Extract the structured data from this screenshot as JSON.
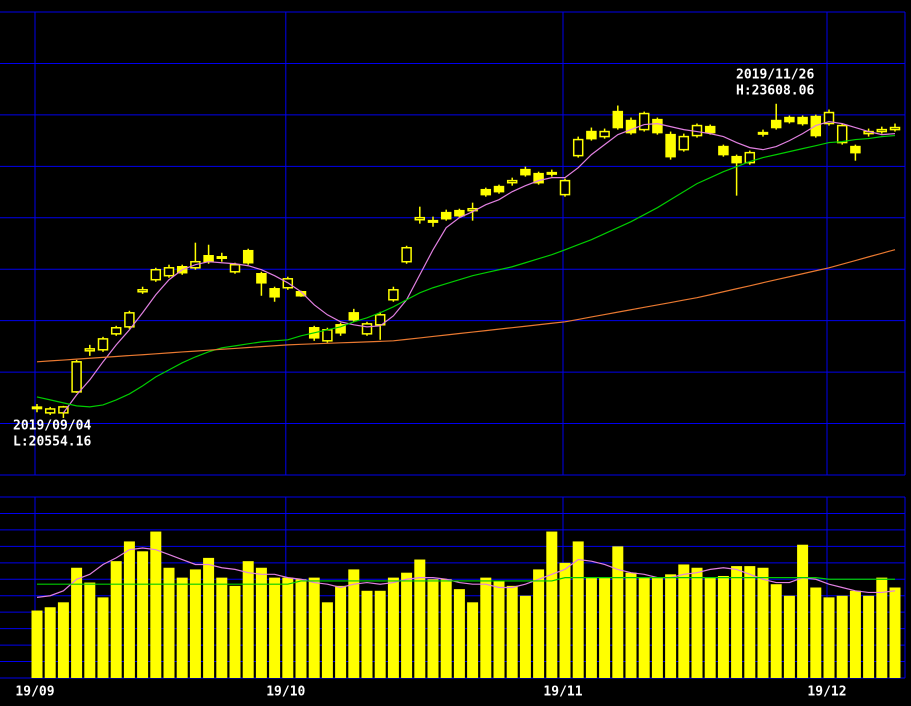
{
  "chart_data": [
    {
      "type": "candlestick",
      "categories": [
        "19/09",
        null,
        null,
        null,
        null,
        null,
        null,
        null,
        null,
        null,
        null,
        null,
        null,
        null,
        null,
        null,
        null,
        null,
        null,
        "19/10",
        null,
        null,
        null,
        null,
        null,
        null,
        null,
        null,
        null,
        null,
        null,
        null,
        null,
        null,
        null,
        null,
        null,
        null,
        null,
        null,
        "19/11",
        null,
        null,
        null,
        null,
        null,
        null,
        null,
        null,
        null,
        null,
        null,
        null,
        null,
        null,
        null,
        null,
        null,
        null,
        null,
        "19/12",
        null,
        null,
        null,
        null,
        null
      ],
      "open": [
        20650,
        20604,
        20604,
        20808,
        21207,
        21217,
        21372,
        21440,
        21781,
        21898,
        21937,
        22024,
        22014,
        22131,
        22112,
        21975,
        22180,
        21956,
        21810,
        21820,
        21781,
        21431,
        21304,
        21460,
        21576,
        21372,
        21460,
        21703,
        22073,
        22481,
        22462,
        22550,
        22569,
        22569,
        22773,
        22803,
        22841,
        22968,
        22929,
        22929,
        22725,
        23104,
        23338,
        23289,
        23532,
        23445,
        23357,
        23454,
        23308,
        23162,
        23299,
        23386,
        23192,
        23094,
        23036,
        23318,
        23445,
        23474,
        23474,
        23484,
        23416,
        23231,
        23192,
        23318,
        23338,
        23357
      ],
      "high": [
        20690,
        20662,
        20672,
        21119,
        21265,
        21343,
        21450,
        21596,
        21830,
        22014,
        22044,
        22044,
        22258,
        22238,
        22160,
        22063,
        22199,
        21975,
        21830,
        21927,
        21791,
        21450,
        21431,
        21479,
        21615,
        21489,
        21586,
        21830,
        22228,
        22608,
        22511,
        22579,
        22588,
        22647,
        22793,
        22822,
        22890,
        22997,
        22948,
        22968,
        22880,
        23289,
        23377,
        23367,
        23591,
        23474,
        23532,
        23474,
        23338,
        23318,
        23416,
        23406,
        23211,
        23114,
        23153,
        23357,
        23608.06,
        23494,
        23494,
        23503,
        23552,
        23416,
        23211,
        23367,
        23386,
        23416
      ],
      "low": [
        20610,
        20584,
        20554.16,
        20798,
        21158,
        21197,
        21353,
        21421,
        21761,
        21878,
        21917,
        21946,
        21995,
        22053,
        22073,
        21956,
        22044,
        21742,
        21684,
        21800,
        21732,
        21304,
        21285,
        21353,
        21489,
        21353,
        21314,
        21684,
        22053,
        22443,
        22413,
        22472,
        22501,
        22472,
        22705,
        22734,
        22812,
        22900,
        22822,
        22900,
        22705,
        23085,
        23250,
        23269,
        23357,
        23308,
        23338,
        23308,
        23065,
        23143,
        23279,
        23308,
        23094,
        22715,
        23016,
        23289,
        23357,
        23416,
        23396,
        23279,
        23396,
        23211,
        23055,
        23289,
        23318,
        23338
      ],
      "close": [
        20660,
        20642,
        20662,
        21100,
        21226,
        21323,
        21431,
        21576,
        21800,
        21995,
        22014,
        21966,
        22073,
        22073,
        22121,
        22044,
        22063,
        21868,
        21732,
        21907,
        21742,
        21333,
        21411,
        21382,
        21508,
        21469,
        21557,
        21800,
        22209,
        22501,
        22472,
        22491,
        22520,
        22588,
        22725,
        22754,
        22861,
        22919,
        22841,
        22939,
        22861,
        23260,
        23269,
        23338,
        23377,
        23328,
        23513,
        23328,
        23094,
        23289,
        23396,
        23328,
        23114,
        23036,
        23133,
        23328,
        23377,
        23435,
        23416,
        23299,
        23523,
        23396,
        23133,
        23338,
        23357,
        23377
      ],
      "up_color": "#ffff00",
      "down_color": "#ffff00",
      "lines": [
        {
          "color": "#e080e0",
          "values": [
            null,
            null,
            20604,
            20779,
            20925,
            21100,
            21265,
            21411,
            21577,
            21752,
            21898,
            21995,
            22044,
            22073,
            22063,
            22053,
            22034,
            21995,
            21937,
            21868,
            21781,
            21654,
            21557,
            21489,
            21460,
            21440,
            21450,
            21547,
            21703,
            21946,
            22189,
            22404,
            22501,
            22559,
            22627,
            22676,
            22754,
            22812,
            22861,
            22890,
            22890,
            22987,
            23114,
            23211,
            23308,
            23357,
            23406,
            23415,
            23386,
            23357,
            23338,
            23318,
            23289,
            23231,
            23182,
            23162,
            23192,
            23250,
            23318,
            23396,
            23435,
            23415,
            23377,
            23338,
            23308,
            23318
          ]
        },
        {
          "color": "#00cc00",
          "values": [
            20759,
            20730,
            20701,
            20672,
            20662,
            20681,
            20730,
            20788,
            20866,
            20954,
            21022,
            21090,
            21148,
            21197,
            21236,
            21255,
            21275,
            21294,
            21304,
            21314,
            21353,
            21382,
            21411,
            21440,
            21489,
            21528,
            21577,
            21635,
            21703,
            21771,
            21820,
            21859,
            21898,
            21937,
            21966,
            21995,
            22024,
            22063,
            22102,
            22141,
            22189,
            22238,
            22287,
            22345,
            22404,
            22462,
            22530,
            22598,
            22676,
            22754,
            22832,
            22890,
            22948,
            22997,
            23046,
            23085,
            23114,
            23143,
            23172,
            23201,
            23231,
            23240,
            23260,
            23270,
            23289,
            23299
          ]
        },
        {
          "color": "#e87830",
          "values": [
            21100,
            21109,
            21117,
            21126,
            21135,
            21143,
            21152,
            21161,
            21169,
            21178,
            21187,
            21196,
            21204,
            21213,
            21222,
            21230,
            21239,
            21248,
            21256,
            21265,
            21270,
            21275,
            21280,
            21285,
            21289,
            21294,
            21299,
            21304,
            21318,
            21332,
            21347,
            21361,
            21375,
            21389,
            21403,
            21418,
            21432,
            21446,
            21460,
            21475,
            21489,
            21512,
            21536,
            21559,
            21583,
            21606,
            21630,
            21653,
            21676,
            21700,
            21723,
            21752,
            21781,
            21810,
            21839,
            21869,
            21898,
            21927,
            21956,
            21985,
            22014,
            22049,
            22084,
            22120,
            22155,
            22190
          ]
        }
      ],
      "ylim": [
        20000,
        24500
      ],
      "yticks": [
        20000,
        20500,
        21000,
        21500,
        22000,
        22500,
        23000,
        23500,
        24000,
        24500
      ],
      "grid": true,
      "grid_color": "#0000ee",
      "annotations": [
        {
          "text": "2019/11/26"
        },
        {
          "text": "H:23608.06"
        },
        {
          "text": "2019/09/04"
        },
        {
          "text": "L:20554.16"
        }
      ]
    },
    {
      "type": "bar",
      "color": "#ffff00",
      "values": [
        4.1,
        4.3,
        4.6,
        6.7,
        5.8,
        4.9,
        7.1,
        8.3,
        7.7,
        8.9,
        6.7,
        6.1,
        6.6,
        7.3,
        6.1,
        5.6,
        7.1,
        6.7,
        6.1,
        6.1,
        6.0,
        6.1,
        4.6,
        5.6,
        6.6,
        5.3,
        5.3,
        6.1,
        6.4,
        7.2,
        6.0,
        6.0,
        5.4,
        4.6,
        6.1,
        5.9,
        5.6,
        5.0,
        6.6,
        8.9,
        7.0,
        8.3,
        6.1,
        6.1,
        8.0,
        6.4,
        6.1,
        6.1,
        6.3,
        6.9,
        6.7,
        6.1,
        6.2,
        6.8,
        6.8,
        6.7,
        5.7,
        5.0,
        8.1,
        5.5,
        4.9,
        5.0,
        5.3,
        5.0,
        6.1,
        5.5
      ],
      "lines": [
        {
          "color": "#e080e0",
          "values": [
            4.9,
            5.0,
            5.3,
            6.0,
            6.3,
            6.9,
            7.3,
            7.8,
            7.9,
            7.8,
            7.5,
            7.2,
            6.9,
            6.9,
            6.7,
            6.6,
            6.4,
            6.3,
            6.3,
            6.1,
            6.0,
            5.8,
            5.7,
            5.5,
            5.7,
            5.8,
            5.7,
            5.8,
            6.0,
            6.1,
            6.1,
            6.0,
            5.8,
            5.7,
            5.7,
            5.5,
            5.5,
            5.7,
            6.0,
            6.3,
            6.6,
            7.2,
            7.1,
            6.9,
            6.6,
            6.4,
            6.3,
            6.1,
            6.1,
            6.3,
            6.4,
            6.6,
            6.7,
            6.6,
            6.3,
            6.0,
            5.8,
            5.8,
            6.1,
            6.0,
            5.7,
            5.5,
            5.3,
            5.2,
            5.2,
            5.3
          ]
        },
        {
          "color": "#00cc00",
          "values": [
            5.7,
            5.7,
            5.7,
            5.7,
            5.7,
            5.7,
            5.7,
            5.7,
            5.7,
            5.7,
            5.7,
            5.7,
            5.7,
            5.7,
            5.7,
            5.7,
            5.7,
            5.7,
            5.7,
            5.7,
            5.9,
            5.9,
            5.9,
            5.9,
            5.9,
            5.9,
            5.9,
            5.9,
            5.9,
            5.9,
            5.9,
            5.9,
            5.9,
            5.9,
            5.9,
            5.9,
            5.9,
            5.9,
            5.9,
            5.9,
            6.1,
            6.1,
            6.1,
            6.1,
            6.1,
            6.1,
            6.1,
            6.1,
            6.1,
            6.1,
            6.1,
            6.1,
            6.1,
            6.1,
            6.1,
            6.1,
            6.1,
            6.1,
            6.1,
            6.1,
            6.0,
            6.0,
            6.0,
            6.0,
            6.0,
            6.0
          ]
        }
      ],
      "ylim": [
        0,
        11
      ],
      "yticks": [
        0,
        1,
        2,
        3,
        4,
        5,
        6,
        7,
        8,
        9,
        10,
        11
      ],
      "grid": true,
      "grid_color": "#0000ee"
    }
  ]
}
